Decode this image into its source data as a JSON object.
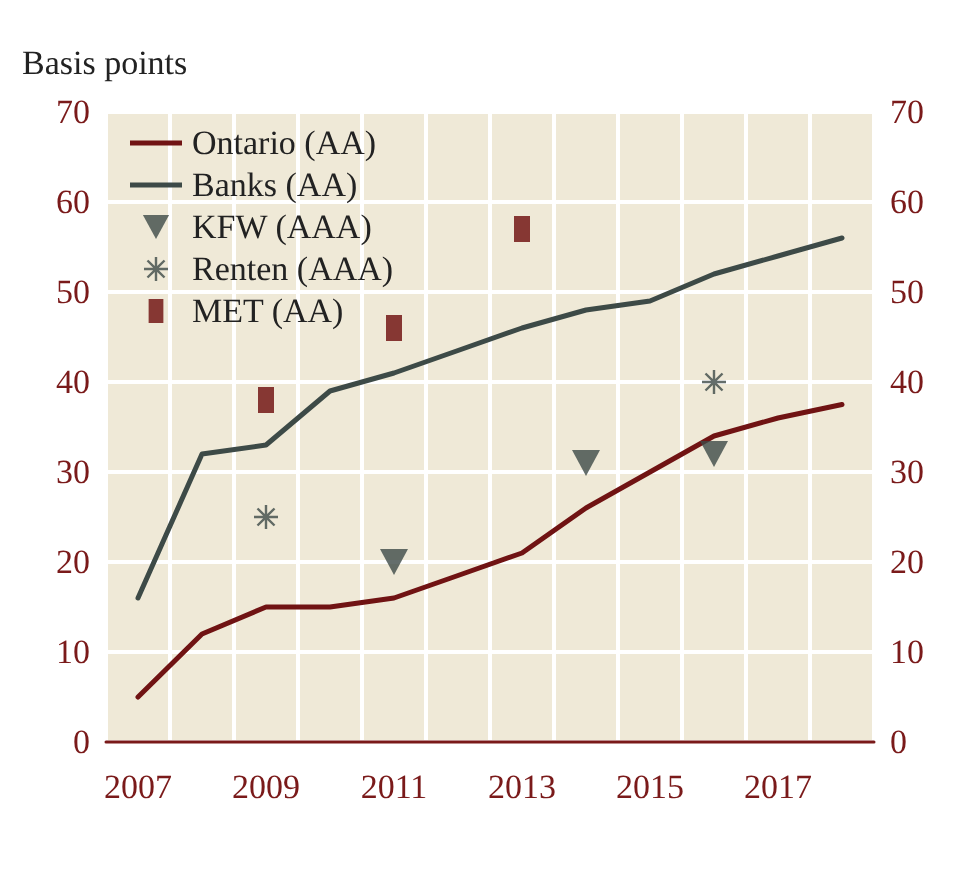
{
  "chart_data": {
    "type": "line",
    "ylabel": "Basis points",
    "categories": [
      "2007",
      null,
      "2009",
      null,
      "2011",
      null,
      "2013",
      null,
      "2015",
      null,
      "2017",
      null
    ],
    "series": [
      {
        "name": "Ontario (AA)",
        "color": "#701313",
        "values": [
          5,
          12,
          15,
          15,
          16,
          18.5,
          21,
          26,
          30,
          34,
          36,
          37.5
        ]
      },
      {
        "name": "Banks (AA)",
        "color": "#3d4a47",
        "values": [
          16,
          32,
          33,
          39,
          41,
          43.5,
          46,
          48,
          49,
          52,
          54,
          56
        ]
      },
      {
        "name": "KFW (AAA)",
        "type": "scatter",
        "marker": "triangle",
        "color": "#3d4a47",
        "values": [
          null,
          null,
          null,
          null,
          20,
          null,
          null,
          31,
          null,
          32,
          null,
          null
        ]
      },
      {
        "name": "Renten (AAA)",
        "type": "scatter",
        "marker": "star",
        "color": "#3d4a47",
        "values": [
          null,
          null,
          25,
          null,
          null,
          null,
          null,
          null,
          null,
          40,
          null,
          null
        ]
      },
      {
        "name": "MET (AA)",
        "type": "scatter",
        "marker": "square",
        "color": "#6b0a0a",
        "values": [
          null,
          null,
          38,
          null,
          46,
          null,
          57,
          null,
          null,
          null,
          null,
          null
        ]
      }
    ],
    "ylim": [
      0,
      70
    ],
    "yticks": [
      0,
      10,
      20,
      30,
      40,
      50,
      60,
      70
    ],
    "y2lim": [
      0,
      70
    ],
    "y2ticks": [
      0,
      10,
      20,
      30,
      40,
      50,
      60,
      70
    ],
    "grid": true,
    "legend": "top left"
  }
}
